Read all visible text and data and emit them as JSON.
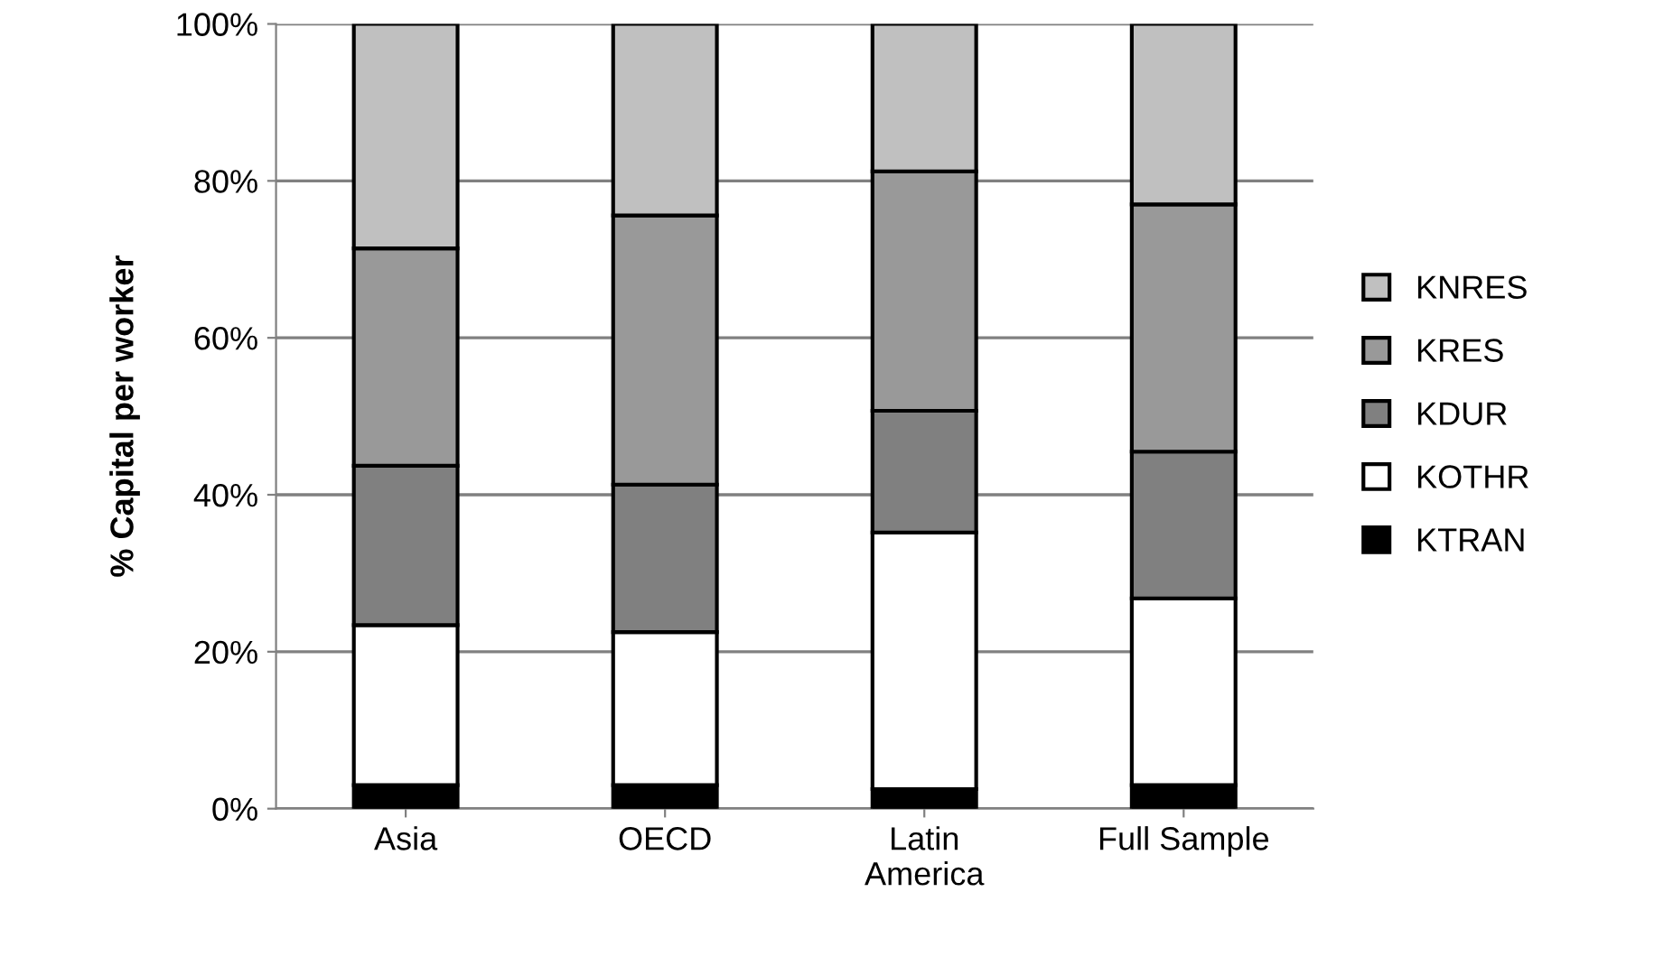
{
  "chart_data": {
    "type": "bar",
    "stacked": true,
    "ylabel": "% Capital per worker",
    "categories": [
      "Asia",
      "OECD",
      "Latin\nAmerica",
      "Full Sample"
    ],
    "series": [
      {
        "name": "KTRAN",
        "color": "#000000",
        "values": [
          3.0,
          3.0,
          2.5,
          3.0
        ]
      },
      {
        "name": "KOTHR",
        "color": "#ffffff",
        "values": [
          20.4,
          19.5,
          32.7,
          23.8
        ]
      },
      {
        "name": "KDUR",
        "color": "#808080",
        "values": [
          20.3,
          18.8,
          15.5,
          18.7
        ]
      },
      {
        "name": "KRES",
        "color": "#999999",
        "values": [
          27.7,
          34.3,
          30.5,
          31.5
        ]
      },
      {
        "name": "KNRES",
        "color": "#c0c0c0",
        "values": [
          28.6,
          24.4,
          18.8,
          23.0
        ]
      }
    ],
    "ylim": [
      0,
      100
    ],
    "yticks": [
      {
        "value": 0,
        "label": "0%"
      },
      {
        "value": 20,
        "label": "20%"
      },
      {
        "value": 40,
        "label": "40%"
      },
      {
        "value": 60,
        "label": "60%"
      },
      {
        "value": 80,
        "label": "80%"
      },
      {
        "value": 100,
        "label": "100%"
      }
    ],
    "grid": "y",
    "legend": "right"
  }
}
